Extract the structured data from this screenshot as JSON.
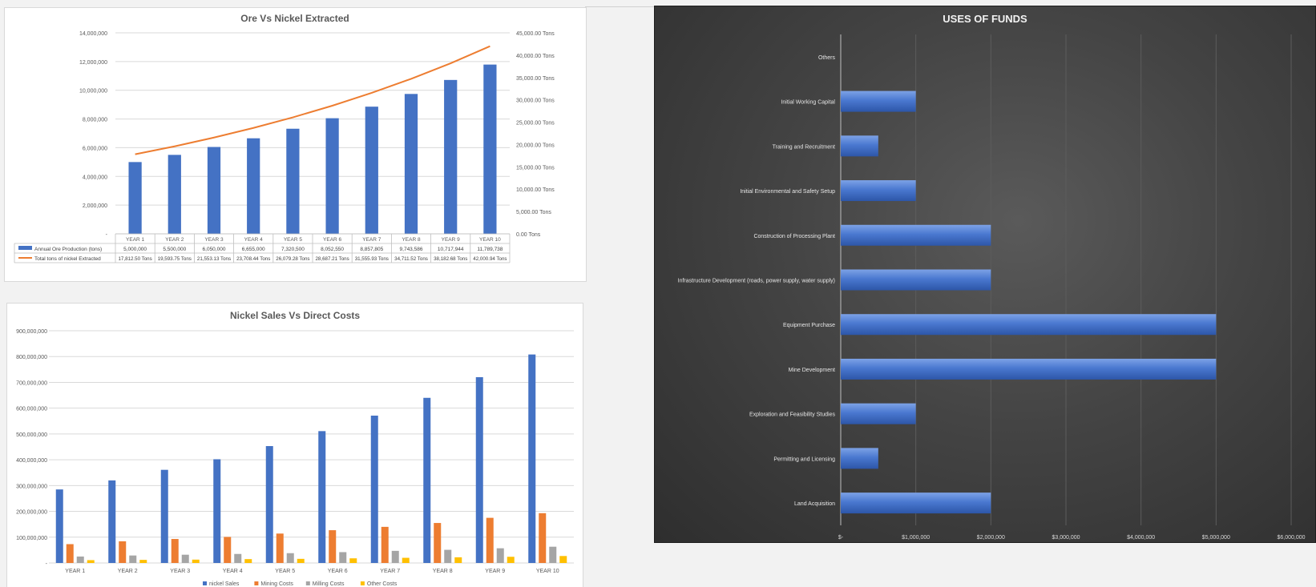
{
  "colors": {
    "blue": "#4472c4",
    "orange": "#ed7d31",
    "gray": "#a5a5a5",
    "yellow": "#ffc000"
  },
  "chart_data": [
    {
      "type": "bar",
      "title": "Ore Vs  Nickel Extracted",
      "categories": [
        "YEAR 1",
        "YEAR 2",
        "YEAR 3",
        "YEAR 4",
        "YEAR 5",
        "YEAR 6",
        "YEAR 7",
        "YEAR 8",
        "YEAR 9",
        "YEAR 10"
      ],
      "series": [
        {
          "name": "Annual Ore Production (tons)",
          "kind": "bar",
          "axis": "left",
          "values": [
            5000000,
            5500000,
            6050000,
            6655000,
            7320500,
            8052550,
            8857805,
            9743586,
            10717944,
            11789738
          ],
          "labels": [
            "5,000,000",
            "5,500,000",
            "6,050,000",
            "6,655,000",
            "7,320,500",
            "8,052,550",
            "8,857,805",
            "9,743,586",
            "10,717,944",
            "11,789,738"
          ]
        },
        {
          "name": "Total tons of nickel Extracted",
          "kind": "line",
          "axis": "right",
          "values": [
            17812.5,
            19593.75,
            21553.13,
            23708.44,
            26079.28,
            28687.21,
            31555.93,
            34711.52,
            38182.68,
            42000.94
          ],
          "labels": [
            "17,812.50 Tons",
            "19,593.75 Tons",
            "21,553.13 Tons",
            "23,708.44 Tons",
            "26,079.28 Tons",
            "28,687.21 Tons",
            "31,555.93 Tons",
            "34,711.52 Tons",
            "38,182.68 Tons",
            "42,000.94 Tons"
          ]
        }
      ],
      "ylim": [
        0,
        14000000
      ],
      "ytick_labels": [
        "-",
        "2,000,000",
        "4,000,000",
        "6,000,000",
        "8,000,000",
        "10,000,000",
        "12,000,000",
        "14,000,000"
      ],
      "y2lim": [
        0,
        45000
      ],
      "y2tick_labels": [
        "0.00 Tons",
        "5,000.00 Tons",
        "10,000.00 Tons",
        "15,000.00 Tons",
        "20,000.00 Tons",
        "25,000.00 Tons",
        "30,000.00 Tons",
        "35,000.00 Tons",
        "40,000.00 Tons",
        "45,000.00 Tons"
      ],
      "grid": true,
      "legend": "data-table"
    },
    {
      "type": "bar",
      "title": "Nickel Sales Vs Direct Costs",
      "categories": [
        "YEAR 1",
        "YEAR 2",
        "YEAR 3",
        "YEAR 4",
        "YEAR 5",
        "YEAR 6",
        "YEAR 7",
        "YEAR 8",
        "YEAR 9",
        "YEAR 10"
      ],
      "series": [
        {
          "name": "nickel Sales",
          "values": [
            285000000,
            320000000,
            361000000,
            402000000,
            453000000,
            511000000,
            571000000,
            640000000,
            720000000,
            808000000
          ]
        },
        {
          "name": "Mining Costs",
          "values": [
            73000000,
            84000000,
            93000000,
            101000000,
            114000000,
            127000000,
            140000000,
            155000000,
            175000000,
            193000000
          ]
        },
        {
          "name": "Milling Costs",
          "values": [
            25000000,
            29000000,
            32000000,
            35000000,
            38000000,
            42000000,
            47000000,
            51000000,
            57000000,
            63000000
          ]
        },
        {
          "name": "Other Costs",
          "values": [
            11000000,
            12000000,
            13000000,
            15000000,
            16000000,
            18000000,
            20000000,
            22000000,
            24000000,
            27000000
          ]
        }
      ],
      "ylim": [
        0,
        900000000
      ],
      "ytick_labels": [
        "-",
        "100,000,000",
        "200,000,000",
        "300,000,000",
        "400,000,000",
        "500,000,000",
        "600,000,000",
        "700,000,000",
        "800,000,000",
        "900,000,000"
      ],
      "grid": true,
      "legend": "bottom"
    },
    {
      "type": "bar",
      "orientation": "horizontal",
      "title": "USES OF FUNDS",
      "categories": [
        "Others",
        "Initial Working Capital",
        "Training and Recruitment",
        "Initial Environmental and Safety Setup",
        "Construction of Processing Plant",
        "Infrastructure Development (roads, power supply, water supply)",
        "Equipment Purchase",
        "Mine Development",
        "Exploration and Feasibility Studies",
        "Permitting and Licensing",
        "Land Acquisition"
      ],
      "values": [
        0,
        1000000,
        500000,
        1000000,
        2000000,
        2000000,
        5000000,
        5000000,
        1000000,
        500000,
        2000000
      ],
      "xlim": [
        0,
        6000000
      ],
      "xtick_labels": [
        "$-",
        "$1,000,000",
        "$2,000,000",
        "$3,000,000",
        "$4,000,000",
        "$5,000,000",
        "$6,000,000"
      ],
      "grid": true
    }
  ]
}
